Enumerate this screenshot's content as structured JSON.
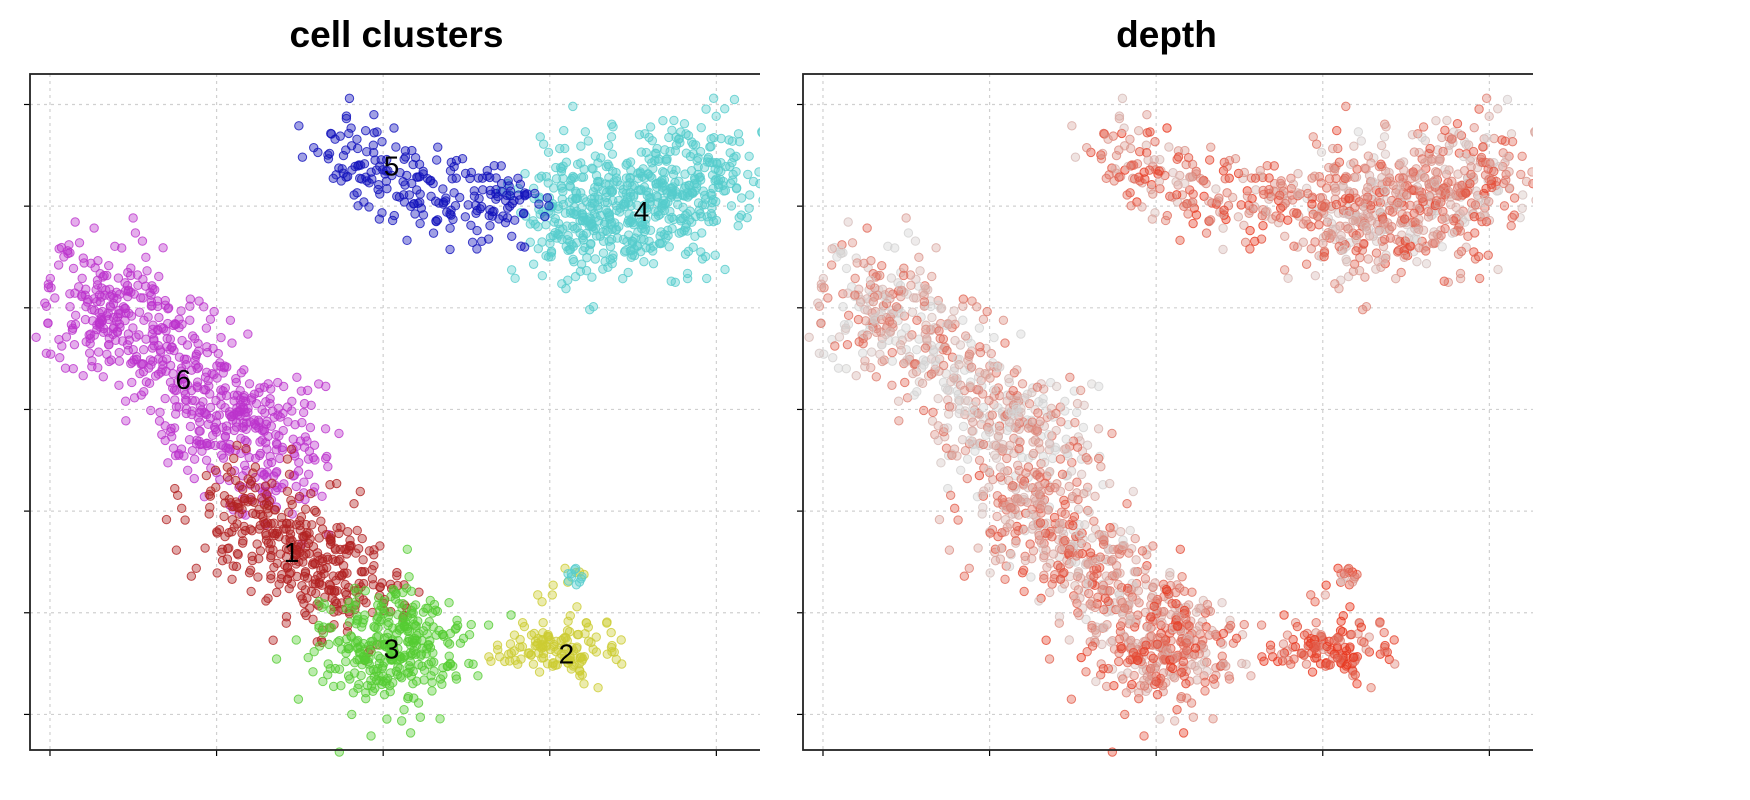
{
  "chart_data": [
    {
      "type": "scatter",
      "title": "cell clusters",
      "xlabel": "",
      "ylabel": "",
      "xlim": [
        -0.12,
        4.28
      ],
      "ylim": [
        -0.35,
        6.3
      ],
      "grid": true,
      "axis_labels_shown": false,
      "point_opacity": 0.4,
      "clusters": [
        {
          "label": "1",
          "color": "#B22222",
          "center": [
            1.45,
            1.6
          ],
          "count": 380,
          "points": "dense oval around center"
        },
        {
          "label": "2",
          "color": "#CCCC33",
          "center": [
            3.1,
            0.6
          ],
          "count": 140,
          "points": "small blob with tail toward (3.15, 1.4)"
        },
        {
          "label": "3",
          "color": "#55CC33",
          "center": [
            2.05,
            0.65
          ],
          "count": 330,
          "points": "round blob around center"
        },
        {
          "label": "4",
          "color": "#55CCCC",
          "center": [
            3.55,
            4.95
          ],
          "count": 620,
          "points": "wide cloud spanning x 2.9 to 4.1"
        },
        {
          "label": "5",
          "color": "#1111BB",
          "center": [
            2.05,
            5.4
          ],
          "count": 220,
          "points": "irregular cloud spanning x 1.6 to 2.9"
        },
        {
          "label": "6",
          "color": "#BB33CC",
          "center": [
            0.8,
            3.3
          ],
          "count": 620,
          "points": "elongated diagonal band from (0.3, 4.3) to (1.3, 2.2)"
        }
      ]
    },
    {
      "type": "scatter",
      "title": "depth",
      "xlabel": "",
      "ylabel": "",
      "xlim": [
        -0.12,
        4.28
      ],
      "ylim": [
        -0.35,
        6.3
      ],
      "grid": true,
      "axis_labels_shown": false,
      "point_opacity": 0.4,
      "color_scale": {
        "low": "#D3D3D3",
        "high": "#E8351C"
      },
      "note_same_embedding": "same points as cell clusters, colored by depth"
    }
  ]
}
